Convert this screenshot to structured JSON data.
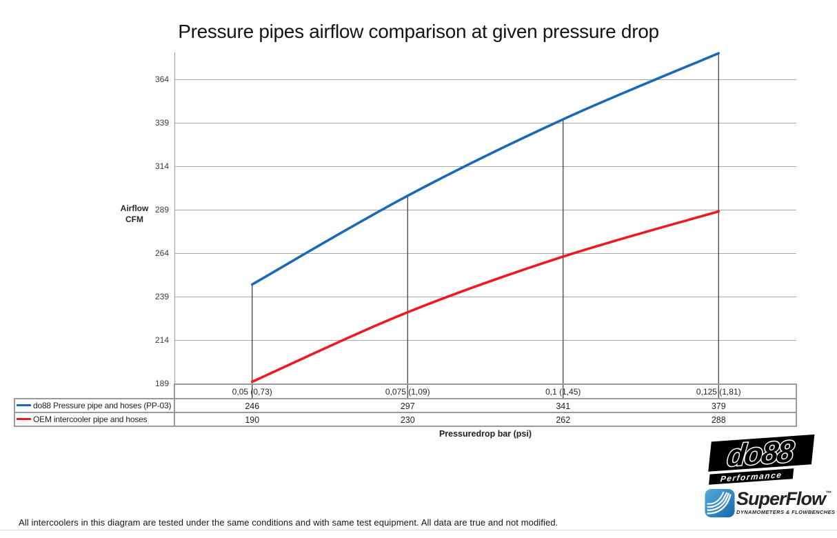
{
  "title": "Pressure pipes airflow comparison at given pressure drop",
  "y_axis": {
    "label_line1": "Airflow",
    "label_line2": "CFM"
  },
  "x_axis": {
    "label": "Pressuredrop bar (psi)"
  },
  "chart_data": {
    "type": "line",
    "title": "Pressure pipes airflow comparison at given pressure drop",
    "xlabel": "Pressuredrop bar (psi)",
    "ylabel": "Airflow CFM",
    "categories": [
      "0,05 (0,73)",
      "0,075 (1,09)",
      "0,1 (1,45)",
      "0,125 (1,81)"
    ],
    "series": [
      {
        "name": "do88 Pressure pipe and hoses (PP-03)",
        "values": [
          246,
          297,
          341,
          379
        ],
        "color": "#1A69B4"
      },
      {
        "name": "OEM intercooler pipe and hoses",
        "values": [
          190,
          230,
          262,
          288
        ],
        "color": "#EC1B23"
      }
    ],
    "ylim": [
      189,
      364
    ],
    "yticks": [
      189,
      214,
      239,
      264,
      289,
      314,
      339,
      364
    ],
    "grid": true,
    "smooth_lines": true,
    "drop_lines": true,
    "legend_position": "data-table-left"
  },
  "footer": "All intercoolers in this diagram are tested under the same conditions and with same test equipment. All data are true and not modified.",
  "logos": {
    "do88": {
      "text": "do88",
      "subtext": "Performance"
    },
    "superflow": {
      "text": "SuperFlow",
      "tm": "™",
      "subtext": "DYNAMOMETERS & FLOWBENCHES",
      "icon_color": "#2380C2",
      "text_color": "#1B4A75"
    }
  }
}
